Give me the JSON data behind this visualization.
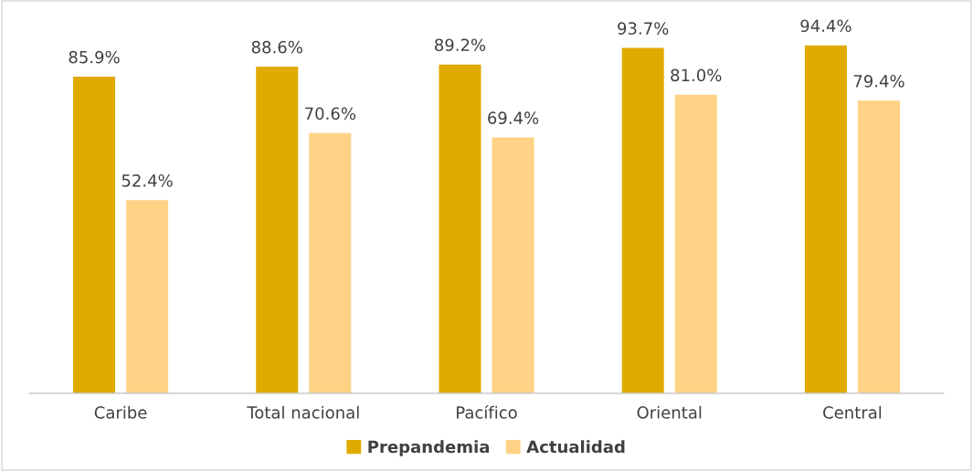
{
  "chart_data": {
    "type": "bar",
    "categories": [
      "Caribe",
      "Total nacional",
      "Pacífico",
      "Oriental",
      "Central"
    ],
    "series": [
      {
        "name": "Prepandemia",
        "color": "#e0aa00",
        "values": [
          85.9,
          88.6,
          89.2,
          93.7,
          94.4
        ],
        "value_labels": [
          "85.9%",
          "88.6%",
          "89.2%",
          "93.7%",
          "94.4%"
        ]
      },
      {
        "name": "Actualidad",
        "color": "#ffd285",
        "values": [
          52.4,
          70.6,
          69.4,
          81.0,
          79.4
        ],
        "value_labels": [
          "52.4%",
          "70.6%",
          "69.4%",
          "81.0%",
          "79.4%"
        ]
      }
    ],
    "tick_labels": "x",
    "legend": "bottom",
    "grid": false
  }
}
